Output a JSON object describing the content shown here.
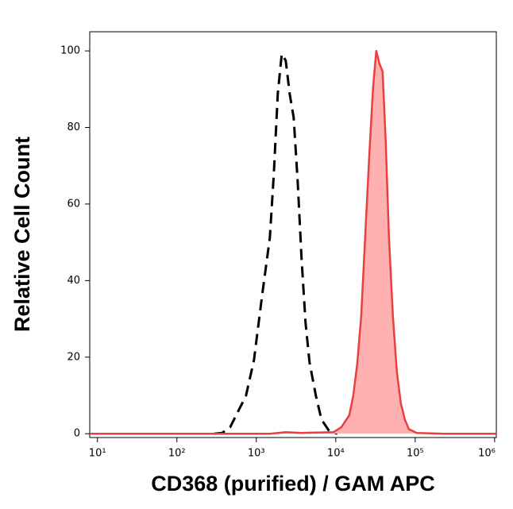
{
  "chart_data": {
    "type": "histogram-overlay",
    "xlabel": "CD368 (purified) / GAM APC",
    "ylabel": "Relative Cell Count",
    "xscale": "log",
    "xlim": [
      8,
      1050000
    ],
    "xticks": [
      {
        "value": 10,
        "label": "10¹"
      },
      {
        "value": 100,
        "label": "10²"
      },
      {
        "value": 1000,
        "label": "10³"
      },
      {
        "value": 10000,
        "label": "10⁴"
      },
      {
        "value": 100000,
        "label": "10⁵"
      },
      {
        "value": 1000000,
        "label": "10⁶"
      }
    ],
    "ylim": [
      -1,
      105
    ],
    "yticks": [
      0,
      20,
      40,
      60,
      80,
      100
    ],
    "series": [
      {
        "color": "#000000",
        "style": "dashed",
        "x": [
          295,
          372,
          468,
          589,
          741,
          933,
          1175,
          1479,
          1660,
          1862,
          2089,
          2344,
          2630,
          2951,
          3311,
          3715,
          4169,
          4677,
          5623,
          6607,
          8318,
          10471
        ],
        "values": [
          0,
          0.2,
          1.7,
          5.8,
          9.9,
          19.2,
          35.7,
          51.2,
          67.8,
          88.8,
          99.2,
          97.5,
          88.8,
          82.6,
          66.1,
          45.5,
          28.9,
          18.6,
          9.9,
          3.7,
          0.6,
          0
        ]
      },
      {
        "color": "#e8403f",
        "fill": "#ffb0b0",
        "style": "filled",
        "x": [
          8,
          589,
          1479,
          2344,
          3715,
          9333,
          11749,
          14791,
          16596,
          18621,
          20893,
          23442,
          26303,
          29512,
          32359,
          35481,
          38905,
          42658,
          46774,
          52481,
          58884,
          66069,
          74131,
          83176,
          104713,
          234423,
          1047129
        ],
        "values": [
          0,
          0,
          0,
          0.4,
          0.2,
          0.4,
          1.7,
          4.8,
          9.9,
          18.2,
          30.6,
          51.2,
          71.9,
          90.5,
          100,
          96.7,
          94.6,
          76,
          51.2,
          30.6,
          16.1,
          7.9,
          3.7,
          1.2,
          0.2,
          0,
          0
        ]
      }
    ]
  }
}
